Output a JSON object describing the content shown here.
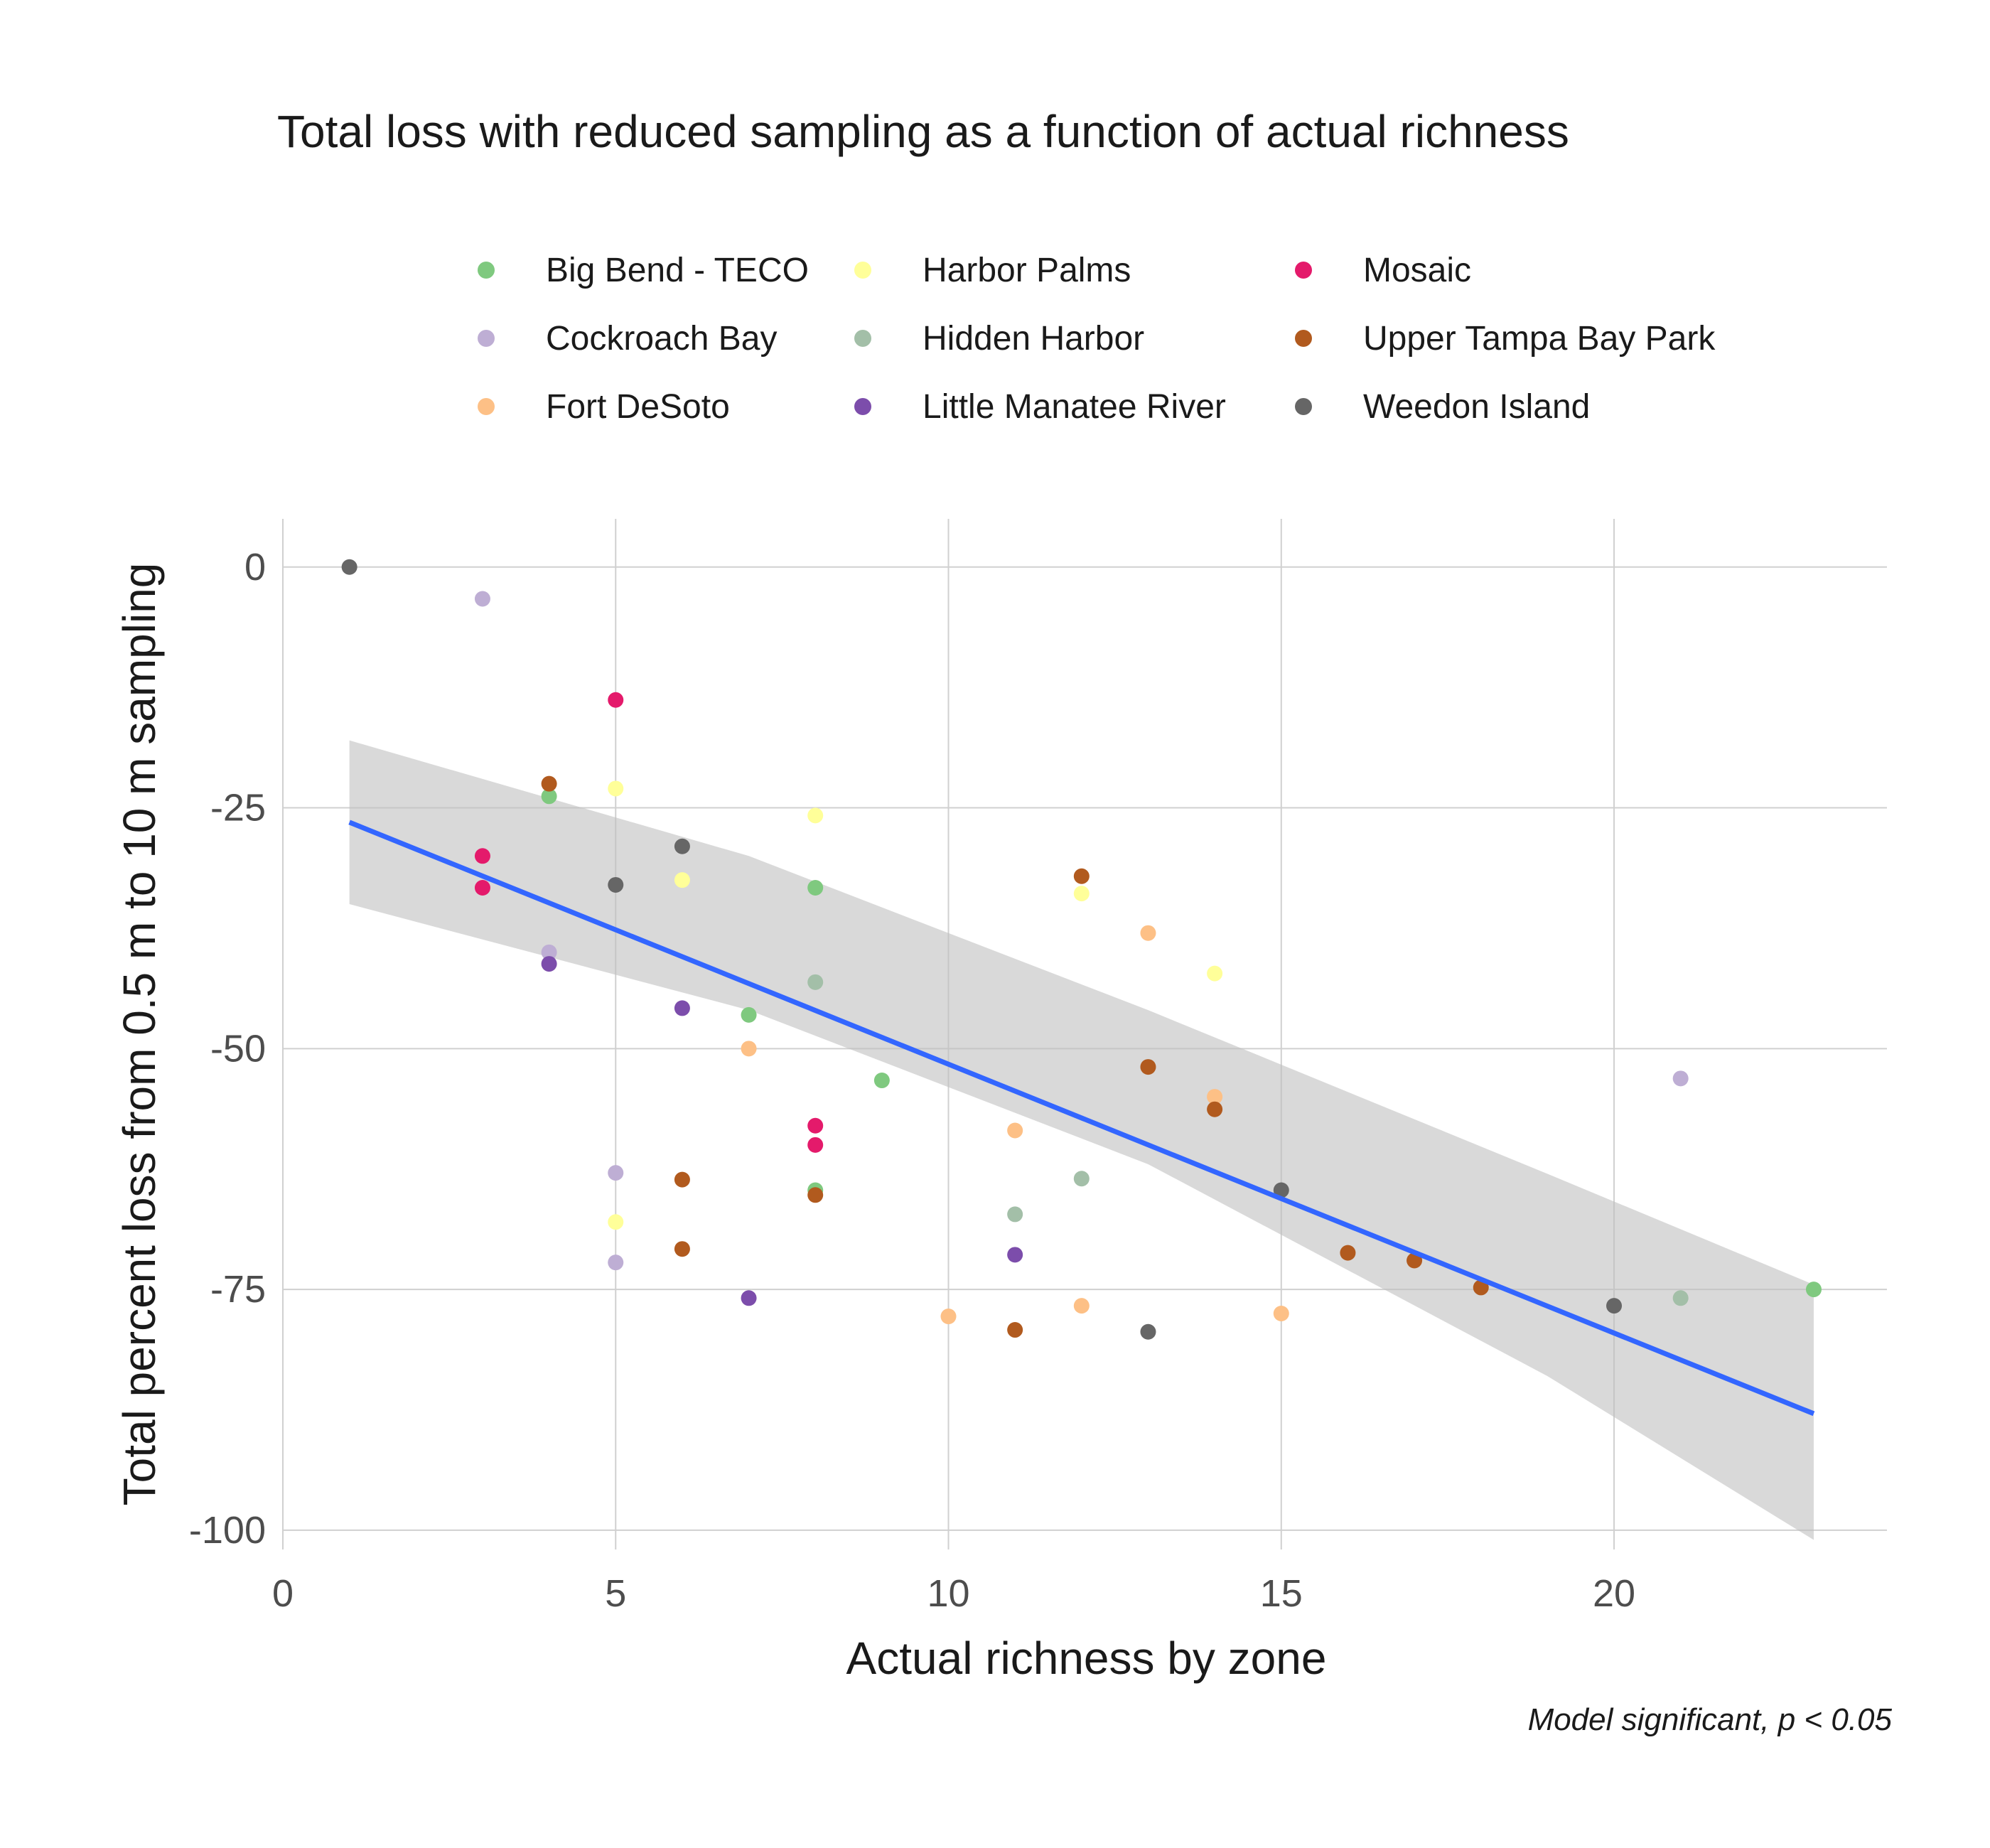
{
  "chart_data": {
    "type": "scatter",
    "title": "Total loss with reduced sampling as a function of actual richness",
    "xlabel": "Actual richness by zone",
    "ylabel": "Total percent loss from 0.5 m to 10 m sampling",
    "caption": "Model significant, p  < 0.05",
    "xlim": [
      0,
      24.1
    ],
    "ylim": [
      -102,
      5
    ],
    "xticks": [
      0,
      5,
      10,
      15,
      20
    ],
    "yticks": [
      0,
      -25,
      -50,
      -75,
      -100
    ],
    "xtick_labels": [
      "0",
      "5",
      "10",
      "15",
      "20"
    ],
    "ytick_labels": [
      "0",
      "-25",
      "-50",
      "-75",
      "-100"
    ],
    "grid": true,
    "legend_position": "top",
    "trend": {
      "type": "linear",
      "color": "#3366FF",
      "line": [
        [
          1,
          -26.5
        ],
        [
          23,
          -87.9
        ]
      ],
      "band_upper": [
        [
          1,
          -18
        ],
        [
          7,
          -30
        ],
        [
          13,
          -46
        ],
        [
          19,
          -63
        ],
        [
          23,
          -74.5
        ]
      ],
      "band_lower": [
        [
          1,
          -35
        ],
        [
          7,
          -46
        ],
        [
          13,
          -62
        ],
        [
          19,
          -84
        ],
        [
          23,
          -101
        ]
      ]
    },
    "series": [
      {
        "name": "Big Bend - TECO",
        "color": "#7FC97F",
        "points": [
          [
            4,
            -23.8
          ],
          [
            7,
            -46.5
          ],
          [
            8,
            -33.3
          ],
          [
            8,
            -64.7
          ],
          [
            9,
            -53.3
          ],
          [
            23,
            -75.0
          ]
        ]
      },
      {
        "name": "Cockroach Bay",
        "color": "#BEAED4",
        "points": [
          [
            3,
            -3.3
          ],
          [
            4,
            -40.0
          ],
          [
            5,
            -62.9
          ],
          [
            5,
            -72.2
          ],
          [
            21,
            -53.1
          ]
        ]
      },
      {
        "name": "Fort DeSoto",
        "color": "#FDC086",
        "points": [
          [
            7,
            -50.0
          ],
          [
            10,
            -77.8
          ],
          [
            11,
            -58.5
          ],
          [
            12,
            -76.7
          ],
          [
            13,
            -38.0
          ],
          [
            14,
            -55.0
          ],
          [
            15,
            -77.5
          ]
        ]
      },
      {
        "name": "Harbor Palms",
        "color": "#FFFF99",
        "points": [
          [
            5,
            -23.0
          ],
          [
            5,
            -68.0
          ],
          [
            6,
            -32.5
          ],
          [
            8,
            -25.8
          ],
          [
            12,
            -33.9
          ],
          [
            14,
            -42.2
          ]
        ]
      },
      {
        "name": "Hidden Harbor",
        "color": "#A3BFA8",
        "points": [
          [
            8,
            -43.1
          ],
          [
            11,
            -67.2
          ],
          [
            12,
            -63.5
          ],
          [
            21,
            -75.9
          ]
        ]
      },
      {
        "name": "Little Manatee River",
        "color": "#7C4DAB",
        "points": [
          [
            4,
            -41.2
          ],
          [
            6,
            -45.8
          ],
          [
            7,
            -75.9
          ],
          [
            11,
            -71.4
          ]
        ]
      },
      {
        "name": "Mosaic",
        "color": "#E41A6B",
        "points": [
          [
            3,
            -30.0
          ],
          [
            3,
            -33.3
          ],
          [
            5,
            -13.8
          ],
          [
            8,
            -58.0
          ],
          [
            8,
            -60.0
          ]
        ]
      },
      {
        "name": "Upper Tampa Bay Park",
        "color": "#B15A1E",
        "points": [
          [
            4,
            -22.5
          ],
          [
            6,
            -63.6
          ],
          [
            6,
            -70.8
          ],
          [
            8,
            -65.2
          ],
          [
            11,
            -79.2
          ],
          [
            12,
            -32.1
          ],
          [
            13,
            -51.9
          ],
          [
            14,
            -56.3
          ],
          [
            16,
            -71.2
          ],
          [
            17,
            -72.0
          ],
          [
            18,
            -74.8
          ]
        ]
      },
      {
        "name": "Weedon Island",
        "color": "#666666",
        "points": [
          [
            1,
            0
          ],
          [
            5,
            -33.0
          ],
          [
            6,
            -29.0
          ],
          [
            13,
            -79.4
          ],
          [
            15,
            -64.7
          ],
          [
            20,
            -76.7
          ]
        ]
      }
    ]
  }
}
